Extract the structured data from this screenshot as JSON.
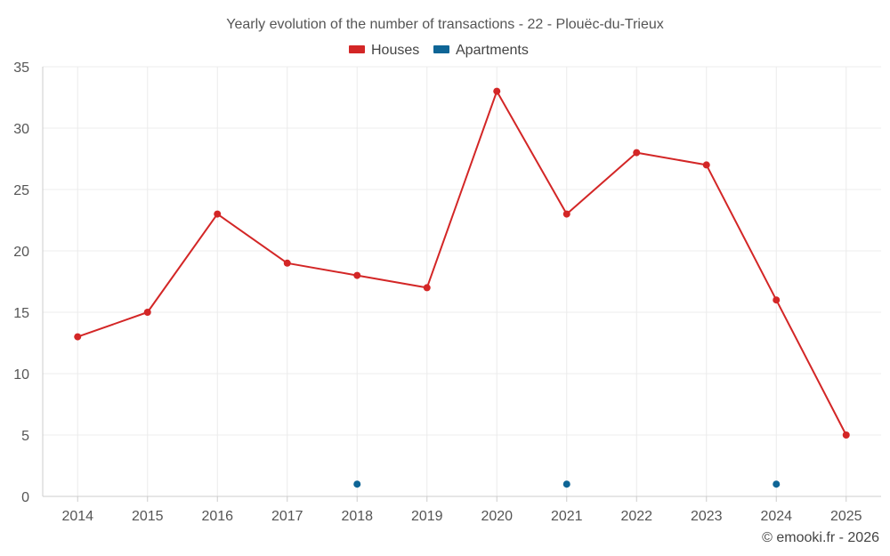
{
  "chart_data": {
    "type": "line",
    "title": "Yearly evolution of the number of transactions - 22 - Plouëc-du-Trieux",
    "categories": [
      "2014",
      "2015",
      "2016",
      "2017",
      "2018",
      "2019",
      "2020",
      "2021",
      "2022",
      "2023",
      "2024",
      "2025"
    ],
    "series": [
      {
        "name": "Houses",
        "color": "#d32626",
        "values": [
          13,
          15,
          23,
          19,
          18,
          17,
          33,
          23,
          28,
          27,
          16,
          5
        ]
      },
      {
        "name": "Apartments",
        "color": "#0e6596",
        "values": [
          null,
          null,
          null,
          null,
          1,
          null,
          null,
          1,
          null,
          null,
          1,
          null
        ]
      }
    ],
    "ylim": [
      0,
      35
    ],
    "yticks": [
      "0",
      "5",
      "10",
      "15",
      "20",
      "25",
      "30",
      "35"
    ],
    "grid": true,
    "legend": "top-center"
  },
  "credit": "© emooki.fr - 2026"
}
